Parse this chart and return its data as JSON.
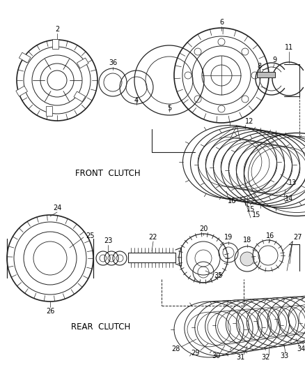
{
  "background": "#ffffff",
  "line_color": "#222222",
  "text_color": "#000000",
  "label_fontsize": 7.0,
  "front_clutch_label": "FRONT  CLUTCH",
  "rear_clutch_label": "REAR  CLUTCH"
}
